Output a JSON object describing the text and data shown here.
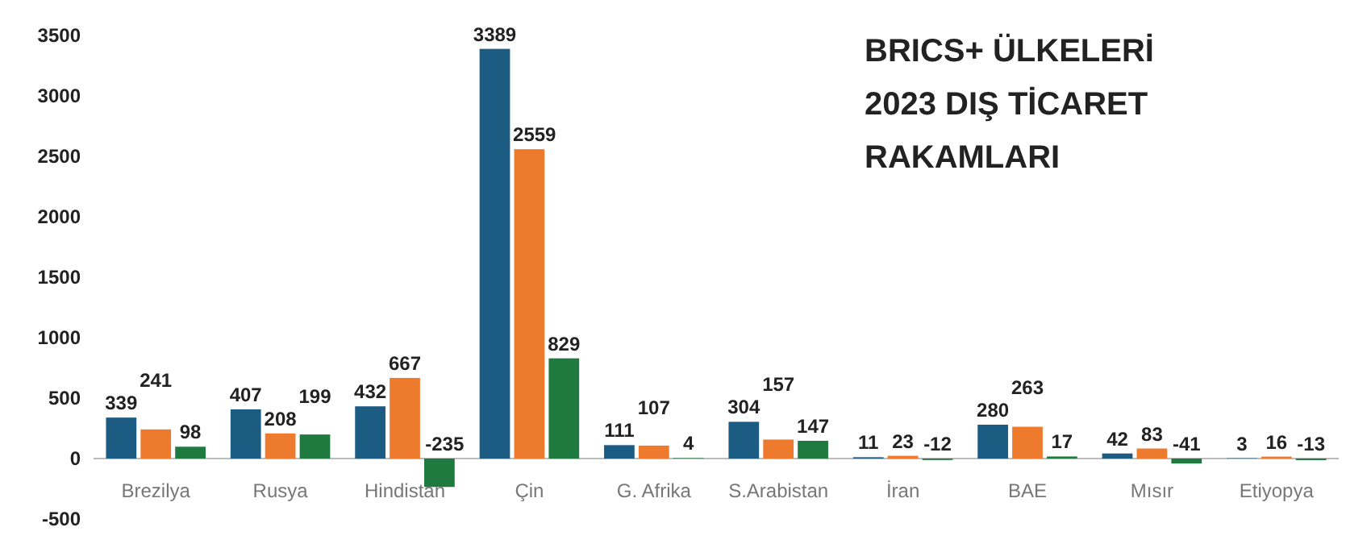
{
  "chart_data": {
    "type": "bar",
    "title": "BRICS+ ÜLKELERİ\n2023 DIŞ TİCARET\nRAKAMLARI",
    "categories": [
      "Brezilya",
      "Rusya",
      "Hindistan",
      "Çin",
      "G. Afrika",
      "S.Arabistan",
      "İran",
      "BAE",
      "Mısır",
      "Etiyopya"
    ],
    "series": [
      {
        "color": "#1d5c82",
        "values": [
          339,
          407,
          432,
          3389,
          111,
          304,
          11,
          280,
          42,
          3
        ]
      },
      {
        "color": "#ee7a2e",
        "values": [
          241,
          208,
          667,
          2559,
          107,
          157,
          23,
          263,
          83,
          16
        ]
      },
      {
        "color": "#1e7a3e",
        "values": [
          98,
          199,
          -235,
          829,
          4,
          147,
          -12,
          17,
          -41,
          -13
        ]
      }
    ],
    "ylim": [
      -500,
      3500
    ],
    "yticks": [
      -500,
      0,
      500,
      1000,
      1500,
      2000,
      2500,
      3000,
      3500
    ],
    "data_labels": true,
    "grid": false
  }
}
